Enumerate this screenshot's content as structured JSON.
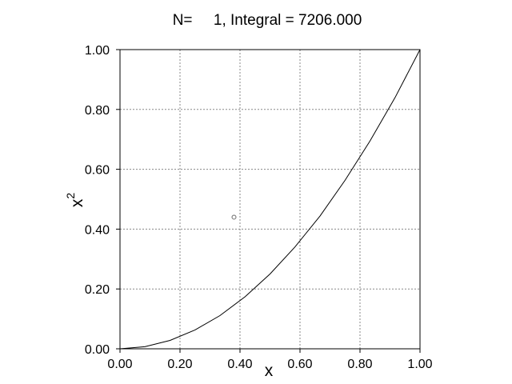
{
  "chart_data": {
    "type": "line",
    "title": "N=     1, Integral = 7206.000",
    "xlabel": "x",
    "ylabel_base": "x",
    "ylabel_sup": "2",
    "xlim": [
      0.0,
      1.0
    ],
    "ylim": [
      0.0,
      1.0
    ],
    "x_ticks": [
      0.0,
      0.2,
      0.4,
      0.6,
      0.8,
      1.0
    ],
    "y_ticks": [
      0.0,
      0.2,
      0.4,
      0.6,
      0.8,
      1.0
    ],
    "x_tick_labels": [
      "0.00",
      "0.20",
      "0.40",
      "0.60",
      "0.80",
      "1.00"
    ],
    "y_tick_labels": [
      "0.00",
      "0.20",
      "0.40",
      "0.60",
      "0.80",
      "1.00"
    ],
    "grid": true,
    "series": [
      {
        "style": "line",
        "color": "#000000",
        "x": [
          0.0,
          0.083,
          0.167,
          0.25,
          0.333,
          0.417,
          0.5,
          0.583,
          0.667,
          0.75,
          0.833,
          0.917,
          1.0
        ],
        "y": [
          0.0,
          0.007,
          0.028,
          0.063,
          0.111,
          0.174,
          0.25,
          0.34,
          0.444,
          0.563,
          0.694,
          0.84,
          1.0
        ]
      },
      {
        "style": "marker",
        "marker": "circle",
        "color": "#666666",
        "x": [
          0.38
        ],
        "y": [
          0.44
        ]
      }
    ]
  }
}
